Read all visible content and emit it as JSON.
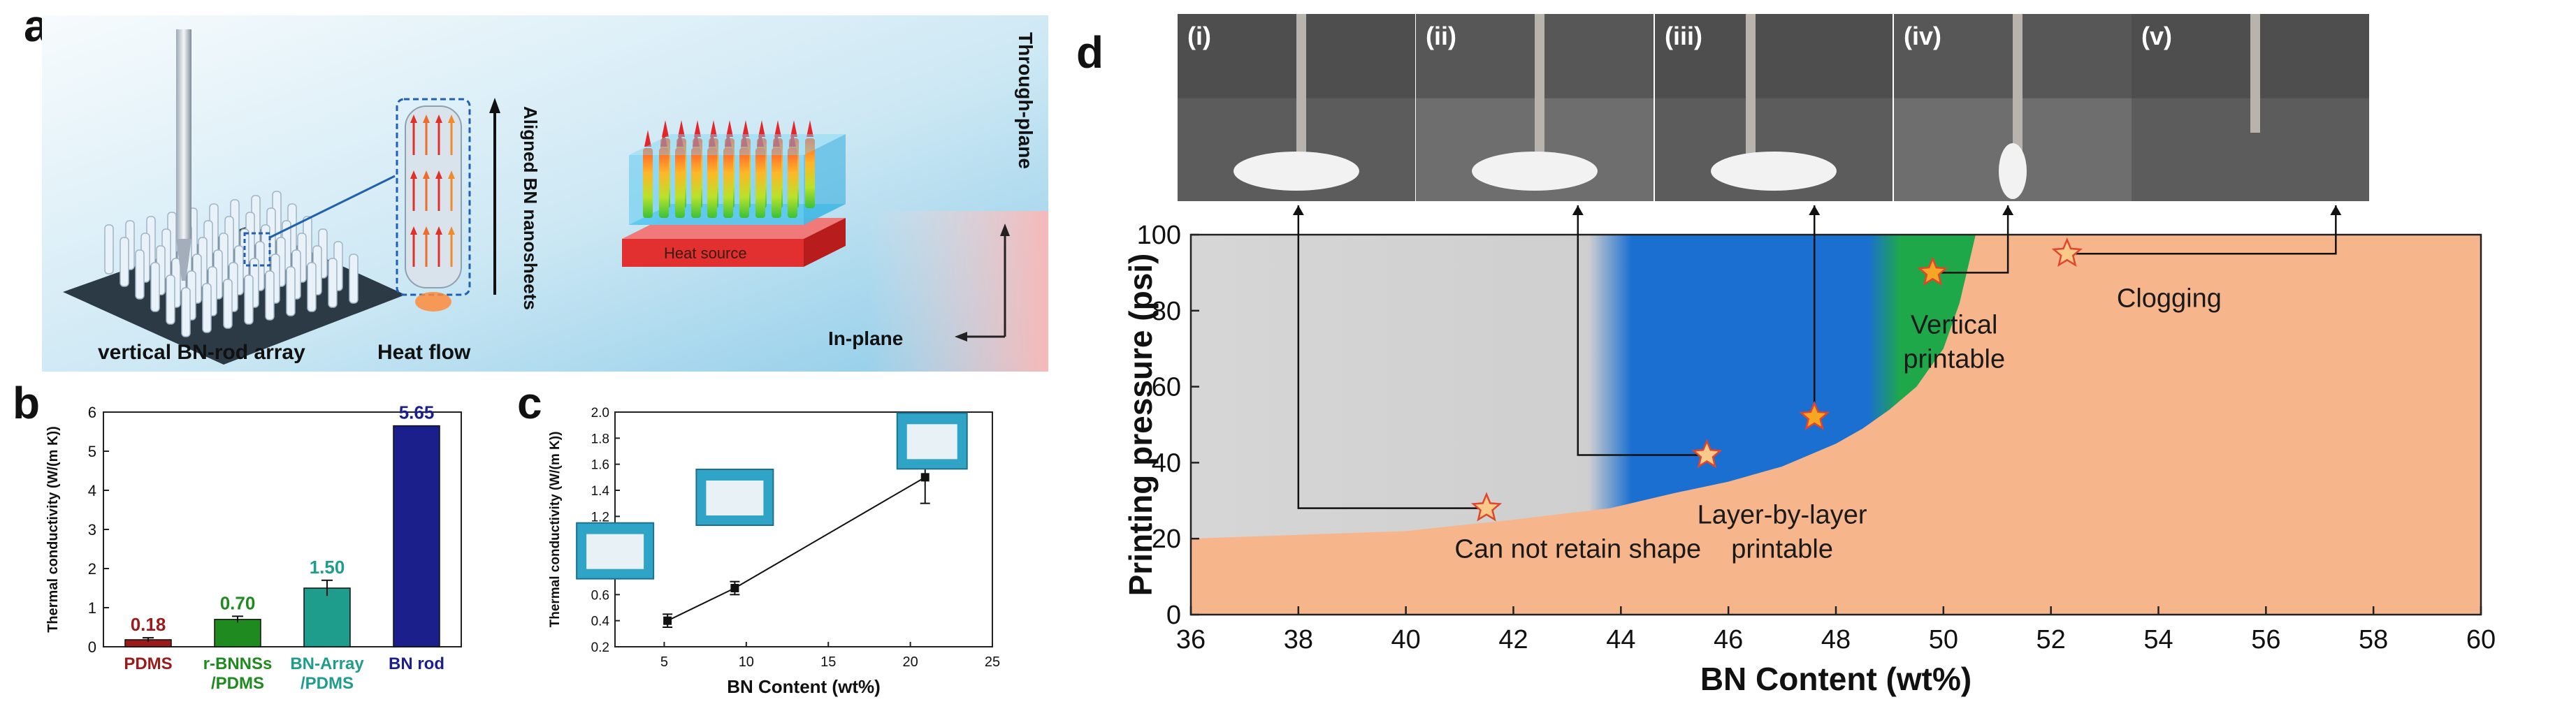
{
  "panel_letters": [
    "a",
    "b",
    "c",
    "d"
  ],
  "panel_a": {
    "labels": {
      "array": "vertical BN-rod array",
      "heat_flow": "Heat flow",
      "aligned": "Aligned BN nanosheets",
      "heat_source": "Heat source",
      "through_plane": "Through-plane",
      "in_plane": "In-plane"
    }
  },
  "chart_data": [
    {
      "id": "b",
      "type": "bar",
      "categories": [
        "PDMS",
        "r-BNNSs\n/PDMS",
        "BN-Array\n/PDMS",
        "BN rod"
      ],
      "values": [
        0.18,
        0.7,
        1.5,
        5.65
      ],
      "errors": [
        0.05,
        0.08,
        0.2,
        0.0
      ],
      "value_labels": [
        "0.18",
        "0.70",
        "1.50",
        "5.65"
      ],
      "ylabel": "Thermal conductivity (W/(m K))",
      "ylim": [
        0,
        6
      ],
      "yticks": [
        "0",
        "1",
        "2",
        "3",
        "4",
        "5",
        "6"
      ],
      "colors": [
        "#9b1b1b",
        "#1f8a1f",
        "#1e9c8c",
        "#1a1f8c"
      ]
    },
    {
      "id": "c",
      "type": "line",
      "x": [
        5.2,
        9.3,
        20.9
      ],
      "y": [
        0.4,
        0.65,
        1.5
      ],
      "yerr": [
        0.05,
        0.05,
        0.2
      ],
      "xlabel": "BN Content (wt%)",
      "ylabel": "Thermal conductivity (W/(m K))",
      "xlim": [
        2,
        25
      ],
      "ylim": [
        0.2,
        2.0
      ],
      "xticks": [
        "5",
        "10",
        "15",
        "20",
        "25"
      ],
      "yticks": [
        "0.2",
        "0.4",
        "0.6",
        "0.8",
        "1.0",
        "1.2",
        "1.4",
        "1.6",
        "1.8",
        "2.0"
      ]
    },
    {
      "id": "d",
      "type": "area",
      "xlabel": "BN Content (wt%)",
      "ylabel": "Printing pressure (psi)",
      "xlim": [
        36,
        60
      ],
      "ylim": [
        0,
        100
      ],
      "xticks": [
        "36",
        "38",
        "40",
        "42",
        "44",
        "46",
        "48",
        "50",
        "52",
        "54",
        "56",
        "58",
        "60"
      ],
      "yticks": [
        "0",
        "20",
        "40",
        "60",
        "80",
        "100"
      ],
      "boundary": {
        "x": [
          36,
          40,
          42,
          43.8,
          45,
          46,
          47,
          48,
          48.5,
          49,
          49.5,
          50,
          50.3,
          50.6
        ],
        "y": [
          20,
          22,
          25,
          28,
          32,
          35,
          39,
          45,
          49,
          54,
          60,
          70,
          82,
          100
        ]
      },
      "regions": [
        {
          "name": "Can not retain shape",
          "x_range": [
            36,
            43.8
          ],
          "color": "#d3d3d3"
        },
        {
          "name": "Layer-by-layer printable",
          "x_range": [
            43.8,
            49
          ],
          "color": "#1a6fd1"
        },
        {
          "name": "Vertical printable",
          "x_range": [
            49,
            50.6
          ],
          "color": "#1fa84a"
        },
        {
          "name": "Clogging",
          "color": "#f7b58c"
        }
      ],
      "points": [
        {
          "x": 41.5,
          "y": 28,
          "filled": false
        },
        {
          "x": 45.6,
          "y": 42,
          "filled": false
        },
        {
          "x": 47.6,
          "y": 52,
          "filled": true
        },
        {
          "x": 49.8,
          "y": 90,
          "filled": true
        },
        {
          "x": 52.3,
          "y": 95,
          "filled": false
        }
      ],
      "annotations": [
        {
          "text": "Can not retain shape",
          "x": 43.2,
          "y": 15
        },
        {
          "text": "Layer-by-layer",
          "x": 47.0,
          "y": 24
        },
        {
          "text": "printable",
          "x": 47.0,
          "y": 15
        },
        {
          "text": "Vertical",
          "x": 50.2,
          "y": 74
        },
        {
          "text": "printable",
          "x": 50.2,
          "y": 65
        },
        {
          "text": "Clogging",
          "x": 54.2,
          "y": 81
        }
      ],
      "photo_labels": [
        "(i)",
        "(ii)",
        "(iii)",
        "(iv)",
        "(v)"
      ]
    }
  ],
  "colors": {
    "sky_top": "#f2f8fb",
    "sky_bottom": "#9fd3ec",
    "heat_source": "#e03030"
  }
}
